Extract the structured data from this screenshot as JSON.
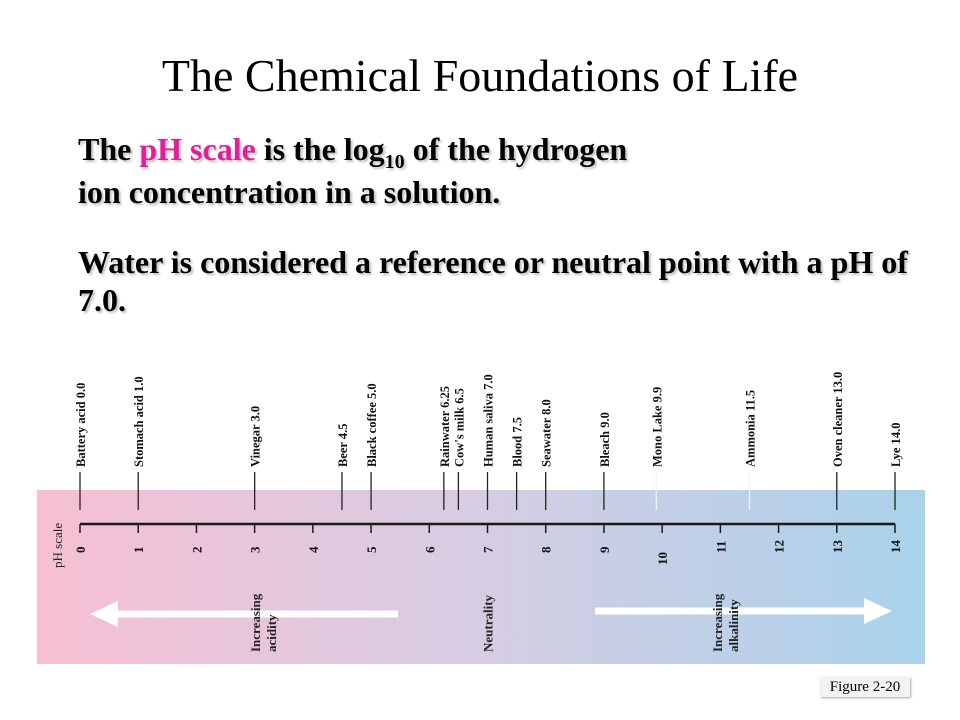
{
  "title": "The Chemical Foundations of Life",
  "paragraph1": {
    "prefix": "The ",
    "highlight": "pH scale",
    "middle": " is the log",
    "subscript": "10",
    "line1_end": " of the hydrogen",
    "line2": "ion concentration in a solution."
  },
  "paragraph2": "Water is considered a reference or neutral point with a pH of 7.0.",
  "diagram": {
    "scale_label": "pH scale",
    "ticks": [
      "0",
      "1",
      "2",
      "3",
      "4",
      "5",
      "6",
      "7",
      "8",
      "9",
      "10",
      "11",
      "12",
      "13",
      "14"
    ],
    "substances": [
      {
        "label": "Battery acid 0.0",
        "ph": 0.0
      },
      {
        "label": "Stomach acid 1.0",
        "ph": 1.0
      },
      {
        "label": "Vinegar 3.0",
        "ph": 3.0
      },
      {
        "label": "Beer 4.5",
        "ph": 4.5
      },
      {
        "label": "Black coffee 5.0",
        "ph": 5.0
      },
      {
        "label": "Rainwater 6.25",
        "ph": 6.25
      },
      {
        "label": "Cow's milk 6.5",
        "ph": 6.5
      },
      {
        "label": "Human saliva 7.0",
        "ph": 7.0
      },
      {
        "label": "Blood 7.5",
        "ph": 7.5
      },
      {
        "label": "Seawater 8.0",
        "ph": 8.0
      },
      {
        "label": "Bleach 9.0",
        "ph": 9.0
      },
      {
        "label": "Mono Lake 9.9",
        "ph": 9.9
      },
      {
        "label": "Ammonia 11.5",
        "ph": 11.5
      },
      {
        "label": "Oven cleaner 13.0",
        "ph": 13.0
      },
      {
        "label": "Lye 14.0",
        "ph": 14.0
      }
    ],
    "acidity_label": [
      "Increasing",
      "acidity"
    ],
    "neutrality_label": "Neutrality",
    "alkalinity_label": [
      "Increasing",
      "alkalinity"
    ],
    "colors": {
      "acid_end": "#f7bfd3",
      "middle": "#d6cde3",
      "base_end": "#a9d2eb",
      "arrow": "#ffffff"
    }
  },
  "figure_label": "Figure 2-20"
}
